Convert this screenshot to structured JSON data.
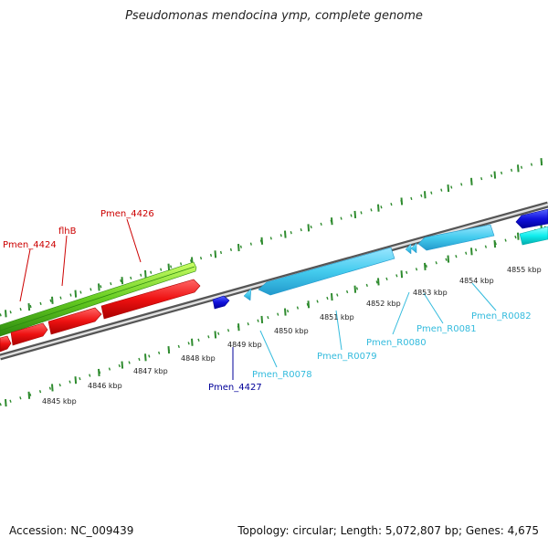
{
  "title": "Pseudomonas mendocina ymp, complete genome",
  "footer": {
    "accession": "Accession: NC_009439",
    "topology": "Topology: circular; Length: 5,072,807 bp; Genes: 4,675"
  },
  "scale_labels": [
    "4845 kbp",
    "4846 kbp",
    "4847 kbp",
    "4848 kbp",
    "4849 kbp",
    "4850 kbp",
    "4851 kbp",
    "4852 kbp",
    "4853 kbp",
    "4854 kbp",
    "4855 kbp"
  ],
  "gene_labels": [
    {
      "text": "Pmen_4424",
      "color": "#cc0000"
    },
    {
      "text": "flhB",
      "color": "#cc0000"
    },
    {
      "text": "Pmen_4426",
      "color": "#cc0000"
    },
    {
      "text": "Pmen_4427",
      "color": "#000099"
    },
    {
      "text": "Pmen_R0078",
      "color": "#33bbdd"
    },
    {
      "text": "Pmen_R0079",
      "color": "#33bbdd"
    },
    {
      "text": "Pmen_R0080",
      "color": "#33bbdd"
    },
    {
      "text": "Pmen_R0081",
      "color": "#33bbdd"
    },
    {
      "text": "Pmen_R0082",
      "color": "#33bbdd"
    }
  ],
  "colors": {
    "tick": "#2e8b2e",
    "red_gene": "#ee1111",
    "green_gene": "#66cc22",
    "lightblue_gene": "#44ccee",
    "darkblue_gene": "#1111dd",
    "cyan_gene": "#11eeee",
    "backbone": "#888888"
  }
}
